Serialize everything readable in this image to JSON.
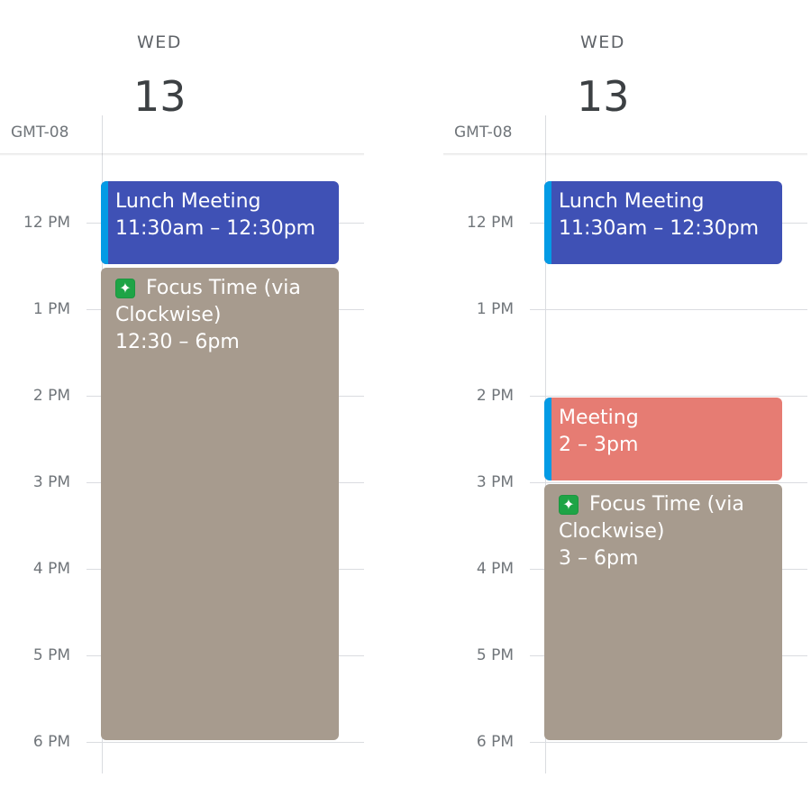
{
  "timezone": "GMT-08",
  "hours": [
    "12 PM",
    "1 PM",
    "2 PM",
    "3 PM",
    "4 PM",
    "5 PM",
    "6 PM"
  ],
  "colors": {
    "lunch": "#3f51b5",
    "meeting": "#e67c73",
    "focus": "#a79b8e",
    "accent": "#039be5"
  },
  "panels": [
    {
      "day_name": "WED",
      "day_number": "13",
      "events": [
        {
          "title": "Lunch Meeting",
          "time": "11:30am – 12:30pm",
          "start": 11.5,
          "end": 12.5,
          "color": "lunch",
          "accent": true,
          "icon": ""
        },
        {
          "title": "Focus Time (via Clockwise)",
          "time": "12:30 – 6pm",
          "start": 12.5,
          "end": 18,
          "color": "focus",
          "accent": false,
          "icon": "sparkle-icon"
        }
      ]
    },
    {
      "day_name": "WED",
      "day_number": "13",
      "events": [
        {
          "title": "Lunch Meeting",
          "time": "11:30am – 12:30pm",
          "start": 11.5,
          "end": 12.5,
          "color": "lunch",
          "accent": true,
          "icon": ""
        },
        {
          "title": "Meeting",
          "time": "2 – 3pm",
          "start": 14,
          "end": 15,
          "color": "meeting",
          "accent": true,
          "icon": ""
        },
        {
          "title": "Focus Time (via Clockwise)",
          "time": "3 – 6pm",
          "start": 15,
          "end": 18,
          "color": "focus",
          "accent": false,
          "icon": "sparkle-icon"
        }
      ]
    }
  ]
}
